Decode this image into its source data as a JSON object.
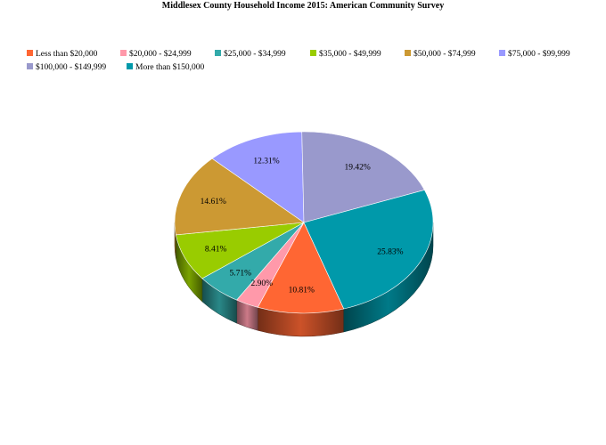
{
  "chart_data": {
    "type": "pie",
    "title": "Middlesex County Household Income 2015: American Community Survey",
    "legend_position": "top",
    "slices": [
      {
        "label": "Less than $20,000",
        "value": 10.81,
        "value_label": "10.81%",
        "color": "#FF6633"
      },
      {
        "label": "$20,000 - $24,999",
        "value": 2.9,
        "value_label": "2.90%",
        "color": "#FF99AA"
      },
      {
        "label": "$25,000 - $34,999",
        "value": 5.71,
        "value_label": "5.71%",
        "color": "#33AAAA"
      },
      {
        "label": "$35,000 - $49,999",
        "value": 8.41,
        "value_label": "8.41%",
        "color": "#99CC00"
      },
      {
        "label": "$50,000 - $74,999",
        "value": 14.61,
        "value_label": "14.61%",
        "color": "#CC9933"
      },
      {
        "label": "$75,000 - $99,999",
        "value": 12.31,
        "value_label": "12.31%",
        "color": "#9999FF"
      },
      {
        "label": "$100,000 - $149,999",
        "value": 19.42,
        "value_label": "19.42%",
        "color": "#9999CC"
      },
      {
        "label": "More than $150,000",
        "value": 25.83,
        "value_label": "25.83%",
        "color": "#0099AA"
      }
    ]
  }
}
